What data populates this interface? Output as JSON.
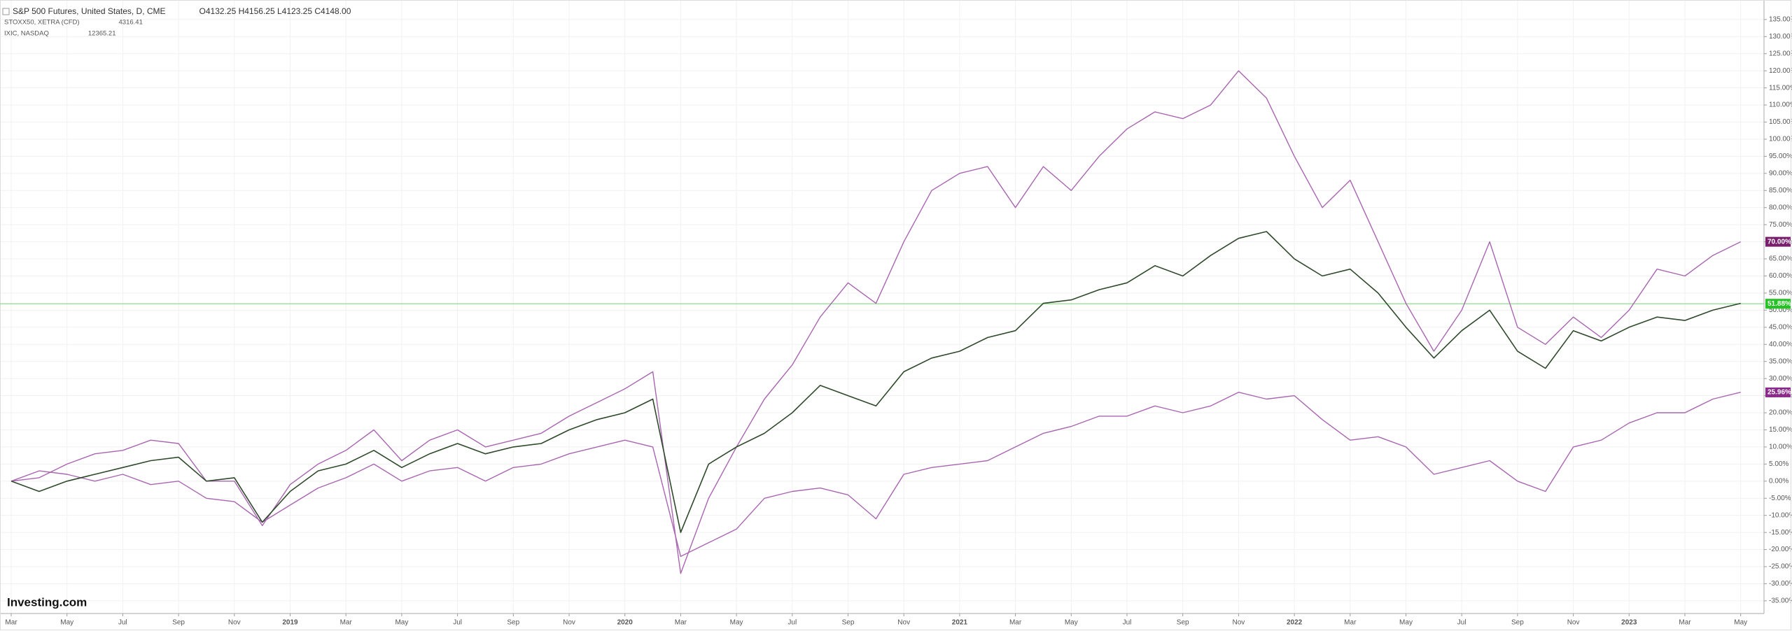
{
  "chart_data": {
    "type": "line",
    "logo": "Investing.com",
    "categories": [
      "Mar",
      null,
      "May",
      null,
      "Jul",
      null,
      "Sep",
      null,
      "Nov",
      null,
      "2019",
      null,
      "Mar",
      null,
      "May",
      null,
      "Jul",
      null,
      "Sep",
      null,
      "Nov",
      null,
      "2020",
      null,
      "Mar",
      null,
      "May",
      null,
      "Jul",
      null,
      "Sep",
      null,
      "Nov",
      null,
      "2021",
      null,
      "Mar",
      null,
      "May",
      null,
      "Jul",
      null,
      "Sep",
      null,
      "Nov",
      null,
      "2022",
      null,
      "Mar",
      null,
      "May",
      null,
      "Jul",
      null,
      "Sep",
      null,
      "Nov",
      null,
      "2023",
      null,
      "Mar",
      null,
      "May"
    ],
    "series": [
      {
        "name": "S&P 500 Futures, United States, D, CME",
        "quote": "O4132.25 H4156.25 L4123.25 C4148.00",
        "color": "#2e4a2a",
        "width": 1.6,
        "last": {
          "value": 51.88,
          "label": "51.88%"
        },
        "badge_color": "#22c322",
        "values": [
          0,
          -3,
          0,
          2,
          4,
          6,
          7,
          0,
          1,
          -12,
          -3,
          3,
          5,
          9,
          4,
          8,
          11,
          8,
          10,
          11,
          15,
          18,
          20,
          24,
          -15,
          5,
          10,
          14,
          20,
          28,
          25,
          22,
          32,
          36,
          38,
          42,
          44,
          52,
          53,
          56,
          58,
          63,
          60,
          66,
          71,
          73,
          65,
          60,
          62,
          55,
          45,
          36,
          44,
          50,
          38,
          33,
          44,
          41,
          45,
          48,
          47,
          50,
          52
        ]
      },
      {
        "name": "STOXX50, XETRA (CFD)",
        "quote": "4316.41",
        "color": "#a866b0",
        "width": 1.4,
        "last": {
          "value": 25.96,
          "label": "25.96%"
        },
        "badge_color": "#8a2a8a",
        "values": [
          0,
          3,
          2,
          0,
          2,
          -1,
          0,
          -5,
          -6,
          -12,
          -7,
          -2,
          1,
          5,
          0,
          3,
          4,
          0,
          4,
          5,
          8,
          10,
          12,
          10,
          -22,
          -18,
          -14,
          -5,
          -3,
          -2,
          -4,
          -11,
          2,
          4,
          5,
          6,
          10,
          14,
          16,
          19,
          19,
          22,
          20,
          22,
          26,
          24,
          25,
          18,
          12,
          13,
          10,
          2,
          4,
          6,
          0,
          -3,
          10,
          12,
          17,
          20,
          20,
          24,
          26
        ]
      },
      {
        "name": "IXIC, NASDAQ",
        "quote": "12365.21",
        "color": "#a866b0",
        "width": 1.4,
        "last": {
          "value": 70,
          "label": "70.00%"
        },
        "badge_color": "#7a1f6e",
        "values": [
          0,
          1,
          5,
          8,
          9,
          12,
          11,
          0,
          0,
          -13,
          -1,
          5,
          9,
          15,
          6,
          12,
          15,
          10,
          12,
          14,
          19,
          23,
          27,
          32,
          -27,
          -5,
          10,
          24,
          34,
          48,
          58,
          52,
          70,
          85,
          90,
          92,
          80,
          92,
          85,
          95,
          103,
          108,
          106,
          110,
          120,
          112,
          95,
          80,
          88,
          70,
          52,
          38,
          50,
          70,
          45,
          40,
          48,
          42,
          50,
          62,
          60,
          66,
          70
        ]
      }
    ],
    "price_line": 51.88,
    "price_line_color": "#7fdc7f",
    "ylim": [
      -38.7,
      140.7
    ],
    "yticks": [
      {
        "value": -35,
        "label": "-35.00%"
      },
      {
        "value": -30,
        "label": "-30.00%"
      },
      {
        "value": -25,
        "label": "-25.00%"
      },
      {
        "value": -20,
        "label": "-20.00%"
      },
      {
        "value": -15,
        "label": "-15.00%"
      },
      {
        "value": -10,
        "label": "-10.00%"
      },
      {
        "value": -5,
        "label": "-5.00%"
      },
      {
        "value": 0,
        "label": "0.00%"
      },
      {
        "value": 5,
        "label": "5.00%"
      },
      {
        "value": 10,
        "label": "10.00%"
      },
      {
        "value": 15,
        "label": "15.00%"
      },
      {
        "value": 20,
        "label": "20.00%"
      },
      {
        "value": 25,
        "label": "25.00%"
      },
      {
        "value": 30,
        "label": "30.00%"
      },
      {
        "value": 35,
        "label": "35.00%"
      },
      {
        "value": 40,
        "label": "40.00%"
      },
      {
        "value": 45,
        "label": "45.00%"
      },
      {
        "value": 50,
        "label": "50.00%"
      },
      {
        "value": 55,
        "label": "55.00%"
      },
      {
        "value": 60,
        "label": "60.00%"
      },
      {
        "value": 65,
        "label": "65.00%"
      },
      {
        "value": 70,
        "label": "70.00%"
      },
      {
        "value": 75,
        "label": "75.00%"
      },
      {
        "value": 80,
        "label": "80.00%"
      },
      {
        "value": 85,
        "label": "85.00%"
      },
      {
        "value": 90,
        "label": "90.00%"
      },
      {
        "value": 95,
        "label": "95.00%"
      },
      {
        "value": 100,
        "label": "100.00%"
      },
      {
        "value": 105,
        "label": "105.00%"
      },
      {
        "value": 110,
        "label": "110.00%"
      },
      {
        "value": 115,
        "label": "115.00%"
      },
      {
        "value": 120,
        "label": "120.00%"
      },
      {
        "value": 125,
        "label": "125.00%"
      },
      {
        "value": 130,
        "label": "130.00%"
      },
      {
        "value": 135,
        "label": "135.00%"
      }
    ],
    "grid": true
  }
}
